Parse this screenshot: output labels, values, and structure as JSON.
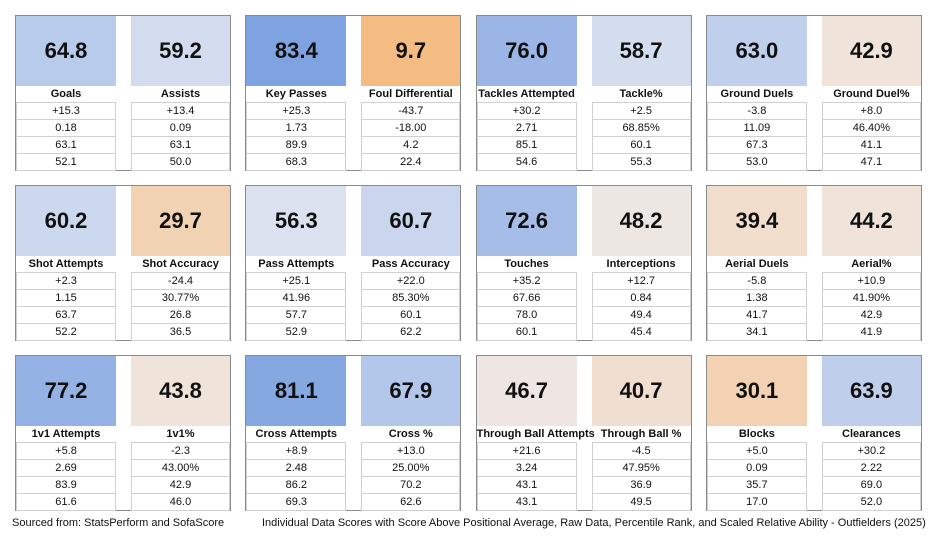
{
  "stats": [
    {
      "score": "64.8",
      "label": "Goals",
      "rows": [
        "+15.3",
        "0.18",
        "63.1",
        "52.1"
      ],
      "color": "#b9cbeb"
    },
    {
      "score": "59.2",
      "label": "Assists",
      "rows": [
        "+13.4",
        "0.09",
        "63.1",
        "50.0"
      ],
      "color": "#d3dcee"
    },
    {
      "score": "83.4",
      "label": "Key Passes",
      "rows": [
        "+25.3",
        "1.73",
        "89.9",
        "68.3"
      ],
      "color": "#7fa3e0"
    },
    {
      "score": "9.7",
      "label": "Foul Differential",
      "rows": [
        "-43.7",
        "-18.00",
        "4.2",
        "22.4"
      ],
      "color": "#f4bc82"
    },
    {
      "score": "76.0",
      "label": "Tackles Attempted",
      "rows": [
        "+30.2",
        "2.71",
        "85.1",
        "54.6"
      ],
      "color": "#9bb6e6"
    },
    {
      "score": "58.7",
      "label": "Tackle%",
      "rows": [
        "+2.5",
        "68.85%",
        "60.1",
        "55.3"
      ],
      "color": "#d4ddee"
    },
    {
      "score": "63.0",
      "label": "Ground Duels",
      "rows": [
        "-3.8",
        "11.09",
        "67.3",
        "53.0"
      ],
      "color": "#c0cfec"
    },
    {
      "score": "42.9",
      "label": "Ground Duel%",
      "rows": [
        "+8.0",
        "46.40%",
        "41.1",
        "47.1"
      ],
      "color": "#f0e3d9"
    },
    {
      "score": "60.2",
      "label": "Shot Attempts",
      "rows": [
        "+2.3",
        "1.15",
        "63.7",
        "52.2"
      ],
      "color": "#ccd8ed"
    },
    {
      "score": "29.7",
      "label": "Shot Accuracy",
      "rows": [
        "-24.4",
        "30.77%",
        "26.8",
        "36.5"
      ],
      "color": "#f1d3b4"
    },
    {
      "score": "56.3",
      "label": "Pass Attempts",
      "rows": [
        "+25.1",
        "41.96",
        "57.7",
        "52.9"
      ],
      "color": "#dbe1ee"
    },
    {
      "score": "60.7",
      "label": "Pass Accuracy",
      "rows": [
        "+22.0",
        "85.30%",
        "60.1",
        "62.2"
      ],
      "color": "#cad6ed"
    },
    {
      "score": "72.6",
      "label": "Touches",
      "rows": [
        "+35.2",
        "67.66",
        "78.0",
        "60.1"
      ],
      "color": "#a6bde8"
    },
    {
      "score": "48.2",
      "label": "Interceptions",
      "rows": [
        "+12.7",
        "0.84",
        "49.4",
        "45.4"
      ],
      "color": "#ede7e4"
    },
    {
      "score": "39.4",
      "label": "Aerial Duels",
      "rows": [
        "-5.8",
        "1.38",
        "41.7",
        "34.1"
      ],
      "color": "#f0ddcc"
    },
    {
      "score": "44.2",
      "label": "Aerial%",
      "rows": [
        "+10.9",
        "41.90%",
        "42.9",
        "41.9"
      ],
      "color": "#f0e4da"
    },
    {
      "score": "77.2",
      "label": "1v1 Attempts",
      "rows": [
        "+5.8",
        "2.69",
        "83.9",
        "61.6"
      ],
      "color": "#95b2e5"
    },
    {
      "score": "43.8",
      "label": "1v1%",
      "rows": [
        "-2.3",
        "43.00%",
        "42.9",
        "46.0"
      ],
      "color": "#f0e4da"
    },
    {
      "score": "81.1",
      "label": "Cross Attempts",
      "rows": [
        "+8.9",
        "2.48",
        "86.2",
        "69.3"
      ],
      "color": "#86a8e1"
    },
    {
      "score": "67.9",
      "label": "Cross %",
      "rows": [
        "+13.0",
        "25.00%",
        "70.2",
        "62.6"
      ],
      "color": "#b3c7ea"
    },
    {
      "score": "46.7",
      "label": "Through Ball Attempts",
      "rows": [
        "+21.6",
        "3.24",
        "43.1",
        "43.1"
      ],
      "color": "#ede6e2"
    },
    {
      "score": "40.7",
      "label": "Through Ball %",
      "rows": [
        "-4.5",
        "47.95%",
        "36.9",
        "49.5"
      ],
      "color": "#f0dfd0"
    },
    {
      "score": "30.1",
      "label": "Blocks",
      "rows": [
        "+5.0",
        "0.09",
        "35.7",
        "17.0"
      ],
      "color": "#f2d2b2"
    },
    {
      "score": "63.9",
      "label": "Clearances",
      "rows": [
        "+30.2",
        "2.22",
        "69.0",
        "52.0"
      ],
      "color": "#bfceeb"
    }
  ],
  "footer": {
    "source": "Sourced from: StatsPerform and SofaScore",
    "caption": "Individual Data Scores with Score Above Positional Average, Raw Data, Percentile Rank, and Scaled Relative Ability - Outfielders (2025)"
  }
}
